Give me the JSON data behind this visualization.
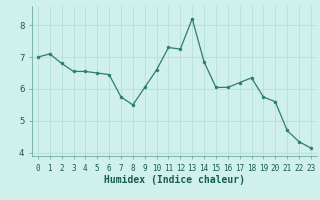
{
  "x": [
    0,
    1,
    2,
    3,
    4,
    5,
    6,
    7,
    8,
    9,
    10,
    11,
    12,
    13,
    14,
    15,
    16,
    17,
    18,
    19,
    20,
    21,
    22,
    23
  ],
  "y": [
    7.0,
    7.1,
    6.8,
    6.55,
    6.55,
    6.5,
    6.45,
    5.75,
    5.5,
    6.05,
    6.6,
    7.3,
    7.25,
    8.2,
    6.85,
    6.05,
    6.05,
    6.2,
    6.35,
    5.75,
    5.6,
    4.7,
    4.35,
    4.15
  ],
  "xlim": [
    -0.5,
    23.5
  ],
  "ylim": [
    3.9,
    8.6
  ],
  "yticks": [
    4,
    5,
    6,
    7,
    8
  ],
  "xticks": [
    0,
    1,
    2,
    3,
    4,
    5,
    6,
    7,
    8,
    9,
    10,
    11,
    12,
    13,
    14,
    15,
    16,
    17,
    18,
    19,
    20,
    21,
    22,
    23
  ],
  "xlabel": "Humidex (Indice chaleur)",
  "line_color": "#2e7d6e",
  "marker_color": "#2e7d6e",
  "bg_color": "#cff0eb",
  "grid_color": "#b0ddd6",
  "tick_label_color": "#1a5c52",
  "xlabel_color": "#1a5c52",
  "tick_fontsize": 5.5,
  "xlabel_fontsize": 7.0
}
